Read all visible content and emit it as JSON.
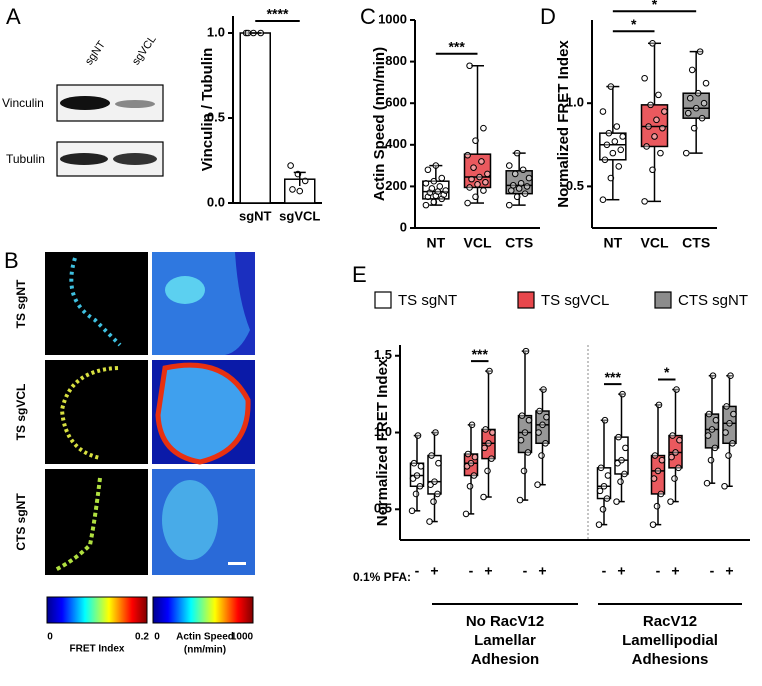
{
  "figure": {
    "panel_labels": [
      "A",
      "B",
      "C",
      "D",
      "E"
    ],
    "blot": {
      "lanes": [
        "sgNT",
        "sgVCL"
      ],
      "bands": [
        "Vinculin",
        "Tubulin"
      ]
    },
    "images": {
      "rows": [
        "TS sgNT",
        "TS sgVCL",
        "CTS sgNT"
      ],
      "colorbars": [
        {
          "min": 0,
          "max": 0.2,
          "label": "FRET Index"
        },
        {
          "min": 0,
          "max": 1000,
          "label": "Actin Speed",
          "unit": "(nm/min)"
        }
      ]
    }
  },
  "chart_data": [
    {
      "type": "bar",
      "ylabel": "Vinculin / Tubulin",
      "categories": [
        "sgNT",
        "sgVCL"
      ],
      "values": [
        1.0,
        0.14
      ],
      "errors": [
        0,
        0.04
      ],
      "points": [
        [
          1,
          1,
          1,
          1
        ],
        [
          0.22,
          0.17,
          0.13,
          0.08,
          0.07
        ]
      ],
      "color": "#ffffff",
      "ylim": [
        0,
        1.1
      ],
      "yticks": [
        {
          "value": 0,
          "label": "0.0"
        },
        {
          "value": 0.5,
          "label": "0.5"
        },
        {
          "value": 1,
          "label": "1.0"
        }
      ],
      "annotations": [
        {
          "label": "****",
          "between": [
            "sgNT",
            "sgVCL"
          ]
        }
      ]
    },
    {
      "type": "box",
      "ylabel": "Actin Speed (nm/min)",
      "categories": [
        "NT",
        "VCL",
        "CTS"
      ],
      "colors": [
        "#ffffff",
        "#e8474c",
        "#8c8c8c"
      ],
      "ylim": [
        0,
        1000
      ],
      "yticks": [
        0,
        200,
        400,
        600,
        800,
        1000
      ],
      "boxes": [
        {
          "min": 110,
          "q1": 140,
          "median": 175,
          "q3": 225,
          "max": 300,
          "points": [
            110,
            125,
            140,
            150,
            155,
            160,
            170,
            175,
            180,
            190,
            200,
            215,
            225,
            240,
            280,
            300
          ]
        },
        {
          "min": 120,
          "q1": 195,
          "median": 245,
          "q3": 355,
          "max": 780,
          "points": [
            120,
            150,
            180,
            195,
            210,
            220,
            235,
            245,
            260,
            290,
            320,
            350,
            420,
            480,
            780
          ]
        },
        {
          "min": 110,
          "q1": 165,
          "median": 205,
          "q3": 275,
          "max": 360,
          "points": [
            110,
            150,
            165,
            180,
            190,
            200,
            205,
            215,
            240,
            260,
            280,
            300,
            360
          ]
        }
      ],
      "annotations": [
        {
          "label": "***",
          "between": [
            "NT",
            "VCL"
          ]
        }
      ]
    },
    {
      "type": "box",
      "ylabel": "Normalized FRET Index",
      "categories": [
        "NT",
        "VCL",
        "CTS"
      ],
      "colors": [
        "#ffffff",
        "#e8474c",
        "#8c8c8c"
      ],
      "ylim": [
        0.25,
        1.5
      ],
      "yticks": [
        0.5,
        {
          "value": 1,
          "label": "1.0"
        }
      ],
      "boxes": [
        {
          "min": 0.42,
          "q1": 0.66,
          "median": 0.75,
          "q3": 0.82,
          "max": 1.1,
          "points": [
            0.42,
            0.55,
            0.62,
            0.66,
            0.7,
            0.72,
            0.75,
            0.77,
            0.8,
            0.82,
            0.86,
            0.95,
            1.1
          ]
        },
        {
          "min": 0.41,
          "q1": 0.74,
          "median": 0.86,
          "q3": 0.99,
          "max": 1.36,
          "points": [
            0.41,
            0.6,
            0.7,
            0.74,
            0.8,
            0.85,
            0.86,
            0.9,
            0.95,
            0.99,
            1.05,
            1.15,
            1.36
          ]
        },
        {
          "min": 0.7,
          "q1": 0.91,
          "median": 0.97,
          "q3": 1.06,
          "max": 1.31,
          "points": [
            0.7,
            0.85,
            0.91,
            0.94,
            0.97,
            1.0,
            1.03,
            1.06,
            1.12,
            1.2,
            1.31
          ]
        }
      ],
      "annotations": [
        {
          "label": "*",
          "between": [
            "NT",
            "VCL"
          ]
        },
        {
          "label": "*",
          "between": [
            "NT",
            "CTS"
          ]
        }
      ]
    },
    {
      "type": "grouped-box",
      "ylabel": "Normalized FRET Index",
      "row_label": "0.1% PFA:",
      "categories": [
        "-",
        "+",
        "-",
        "+",
        "-",
        "+",
        "-",
        "+",
        "-",
        "+",
        "-",
        "+"
      ],
      "groups": [
        "No RacV12 Lamellar Adhesion",
        "RacV12 Lamellipodial Adhesions"
      ],
      "ylim": [
        0.3,
        1.57
      ],
      "yticks": [
        0.5,
        {
          "value": 1,
          "label": "1.0"
        },
        1.5
      ],
      "series": [
        {
          "name": "TS sgNT",
          "color": "#ffffff",
          "boxes": [
            {
              "min": 0.49,
              "q1": 0.65,
              "median": 0.72,
              "q3": 0.8,
              "max": 0.98,
              "points": [
                0.49,
                0.6,
                0.65,
                0.7,
                0.72,
                0.78,
                0.8,
                0.98
              ]
            },
            {
              "min": 0.42,
              "q1": 0.6,
              "median": 0.68,
              "q3": 0.85,
              "max": 1.0,
              "points": [
                0.42,
                0.55,
                0.6,
                0.66,
                0.68,
                0.8,
                0.85,
                1.0
              ]
            },
            {
              "min": 0.4,
              "q1": 0.57,
              "median": 0.65,
              "q3": 0.77,
              "max": 1.08,
              "points": [
                0.4,
                0.5,
                0.57,
                0.62,
                0.65,
                0.72,
                0.77,
                1.08
              ]
            },
            {
              "min": 0.55,
              "q1": 0.73,
              "median": 0.82,
              "q3": 0.97,
              "max": 1.25,
              "points": [
                0.55,
                0.68,
                0.73,
                0.8,
                0.82,
                0.9,
                0.97,
                1.25
              ]
            }
          ]
        },
        {
          "name": "TS sgVCL",
          "color": "#e8474c",
          "boxes": [
            {
              "min": 0.47,
              "q1": 0.72,
              "median": 0.8,
              "q3": 0.86,
              "max": 1.05,
              "points": [
                0.47,
                0.65,
                0.72,
                0.78,
                0.8,
                0.84,
                0.86,
                1.05
              ]
            },
            {
              "min": 0.58,
              "q1": 0.83,
              "median": 0.93,
              "q3": 1.02,
              "max": 1.4,
              "points": [
                0.58,
                0.75,
                0.83,
                0.9,
                0.93,
                1.0,
                1.02,
                1.4
              ]
            },
            {
              "min": 0.4,
              "q1": 0.6,
              "median": 0.75,
              "q3": 0.85,
              "max": 1.18,
              "points": [
                0.4,
                0.52,
                0.6,
                0.7,
                0.75,
                0.82,
                0.85,
                1.18
              ]
            },
            {
              "min": 0.55,
              "q1": 0.77,
              "median": 0.87,
              "q3": 0.98,
              "max": 1.28,
              "points": [
                0.55,
                0.7,
                0.77,
                0.84,
                0.87,
                0.95,
                0.98,
                1.28
              ]
            }
          ]
        },
        {
          "name": "CTS sgNT",
          "color": "#8c8c8c",
          "boxes": [
            {
              "min": 0.56,
              "q1": 0.87,
              "median": 1.0,
              "q3": 1.11,
              "max": 1.53,
              "points": [
                0.56,
                0.75,
                0.87,
                0.95,
                1.0,
                1.08,
                1.11,
                1.53
              ]
            },
            {
              "min": 0.66,
              "q1": 0.93,
              "median": 1.05,
              "q3": 1.14,
              "max": 1.28,
              "points": [
                0.66,
                0.85,
                0.93,
                1.0,
                1.05,
                1.1,
                1.14,
                1.28
              ]
            },
            {
              "min": 0.67,
              "q1": 0.9,
              "median": 1.02,
              "q3": 1.12,
              "max": 1.37,
              "points": [
                0.67,
                0.82,
                0.9,
                0.98,
                1.02,
                1.08,
                1.12,
                1.37
              ]
            },
            {
              "min": 0.65,
              "q1": 0.93,
              "median": 1.06,
              "q3": 1.17,
              "max": 1.37,
              "points": [
                0.65,
                0.85,
                0.93,
                1.0,
                1.06,
                1.12,
                1.17,
                1.37
              ]
            }
          ]
        }
      ],
      "annotations": [
        {
          "label": "***",
          "series": "TS sgVCL",
          "group": "No RacV12 Lamellar Adhesion"
        },
        {
          "label": "***",
          "series": "TS sgNT",
          "group": "RacV12 Lamellipodial Adhesions"
        },
        {
          "label": "*",
          "series": "TS sgVCL",
          "group": "RacV12 Lamellipodial Adhesions"
        }
      ]
    }
  ]
}
